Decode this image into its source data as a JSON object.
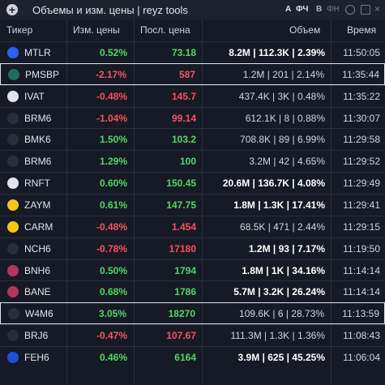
{
  "header": {
    "title": "Объемы и изм. цены | reyz tools",
    "toggles": [
      "А",
      "ФЧ",
      "В",
      "ФН"
    ]
  },
  "table": {
    "columns": [
      "Тикер",
      "Изм. цены",
      "Посл. цена",
      "Объем",
      "Время"
    ],
    "rows": [
      {
        "ticker": "MTLR",
        "change": "0.52%",
        "price": "73.18",
        "volume": "8.2M | 112.3K | 2.39%",
        "time": "11:50:05",
        "volume_bold": true,
        "highlighted": false
      },
      {
        "ticker": "PMSBP",
        "change": "-2.17%",
        "price": "587",
        "volume": "1.2M | 201 | 2.14%",
        "time": "11:35:44",
        "volume_bold": false,
        "highlighted": true
      },
      {
        "ticker": "IVAT",
        "change": "-0.48%",
        "price": "145.7",
        "volume": "437.4K | 3K | 0.48%",
        "time": "11:35:22",
        "volume_bold": false,
        "highlighted": false
      },
      {
        "ticker": "BRM6",
        "change": "-1.04%",
        "price": "99.14",
        "volume": "612.1K | 8 | 0.88%",
        "time": "11:30:07",
        "volume_bold": false,
        "highlighted": false
      },
      {
        "ticker": "BMK6",
        "change": "1.50%",
        "price": "103.2",
        "volume": "708.8K | 89 | 6.99%",
        "time": "11:29:58",
        "volume_bold": false,
        "highlighted": false
      },
      {
        "ticker": "BRM6",
        "change": "1.29%",
        "price": "100",
        "volume": "3.2M | 42 | 4.65%",
        "time": "11:29:52",
        "volume_bold": false,
        "highlighted": false
      },
      {
        "ticker": "RNFT",
        "change": "0.60%",
        "price": "150.45",
        "volume": "20.6M | 136.7K | 4.08%",
        "time": "11:29:49",
        "volume_bold": true,
        "highlighted": false
      },
      {
        "ticker": "ZAYM",
        "change": "0.61%",
        "price": "147.75",
        "volume": "1.8M | 1.3K | 17.41%",
        "time": "11:29:41",
        "volume_bold": true,
        "highlighted": false
      },
      {
        "ticker": "CARM",
        "change": "-0.48%",
        "price": "1.454",
        "volume": "68.5K | 471 | 2.44%",
        "time": "11:29:15",
        "volume_bold": false,
        "highlighted": false
      },
      {
        "ticker": "NCH6",
        "change": "-0.78%",
        "price": "17180",
        "volume": "1.2M | 93 | 7.17%",
        "time": "11:19:50",
        "volume_bold": true,
        "highlighted": false
      },
      {
        "ticker": "BNH6",
        "change": "0.50%",
        "price": "1794",
        "volume": "1.8M | 1K | 34.16%",
        "time": "11:14:14",
        "volume_bold": true,
        "highlighted": false
      },
      {
        "ticker": "BANE",
        "change": "0.68%",
        "price": "1786",
        "volume": "5.7M | 3.2K | 26.24%",
        "time": "11:14:14",
        "volume_bold": true,
        "highlighted": false
      },
      {
        "ticker": "W4M6",
        "change": "3.05%",
        "price": "18270",
        "volume": "109.6K | 6 | 28.73%",
        "time": "11:13:59",
        "volume_bold": false,
        "highlighted": true
      },
      {
        "ticker": "BRJ6",
        "change": "-0.47%",
        "price": "107.67",
        "volume": "111.3M | 1.3K | 1.36%",
        "time": "11:08:43",
        "volume_bold": false,
        "highlighted": false
      },
      {
        "ticker": "FEH6",
        "change": "0.46%",
        "price": "6164",
        "volume": "3.9M | 625 | 45.25%",
        "time": "11:06:04",
        "volume_bold": true,
        "highlighted": false
      }
    ]
  }
}
